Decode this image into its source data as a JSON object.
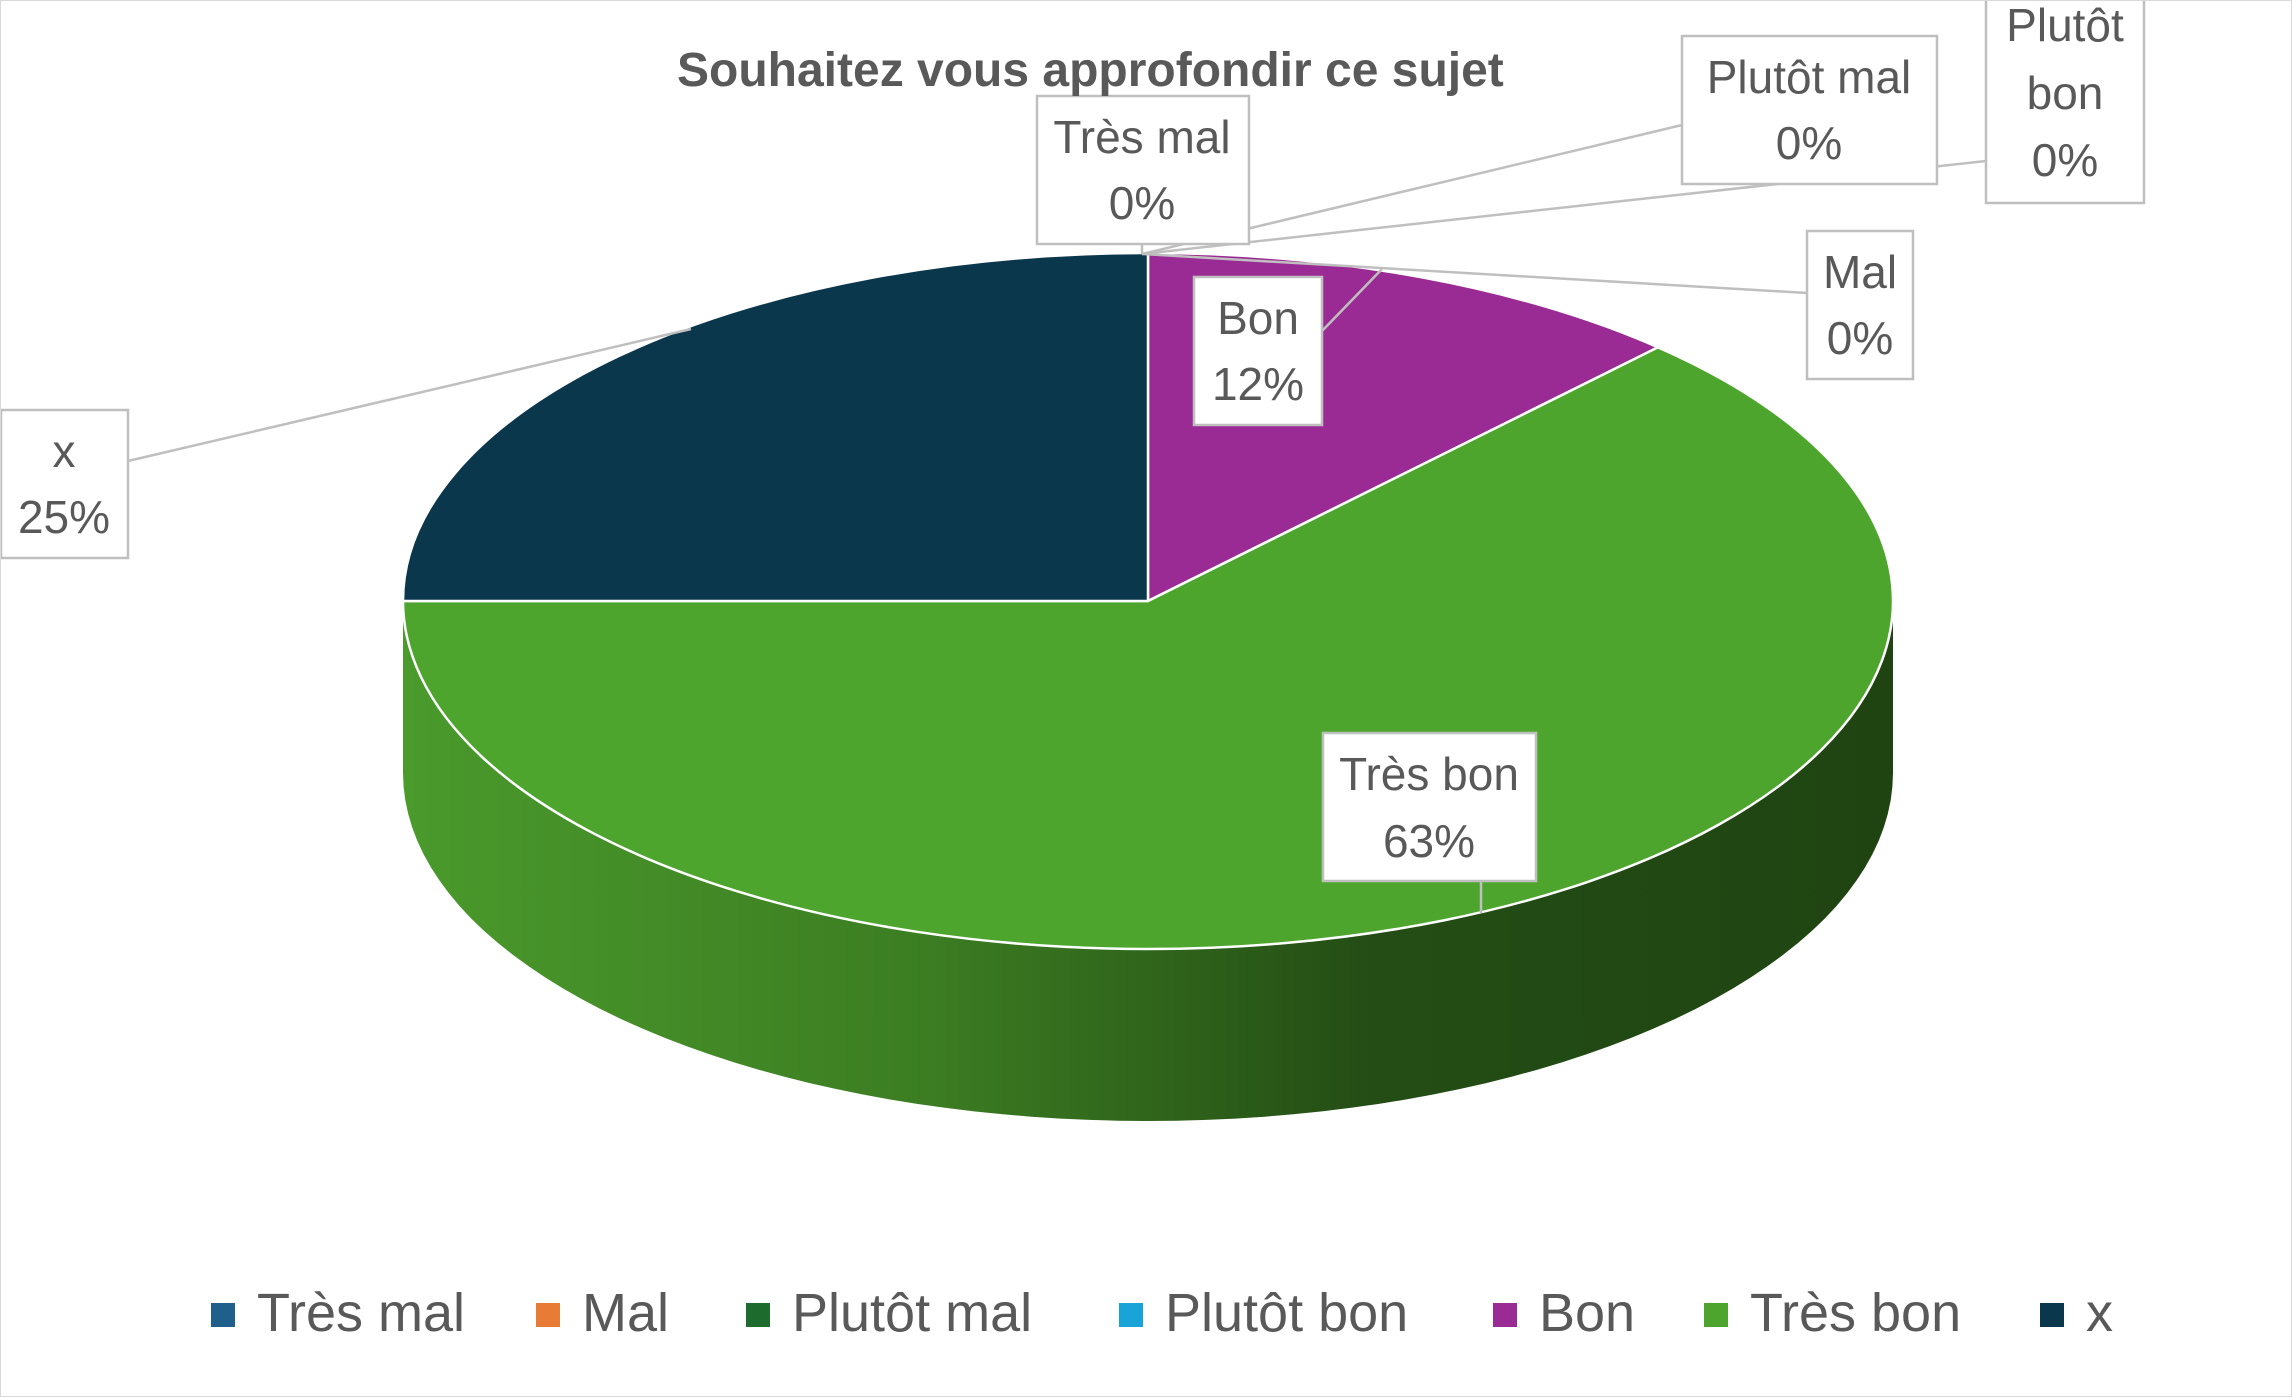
{
  "chart_data": {
    "type": "pie",
    "title": "Souhaitez vous approfondir ce sujet",
    "categories": [
      "Très mal",
      "Mal",
      "Plutôt mal",
      "Plutôt bon",
      "Bon",
      "Très bon",
      "x"
    ],
    "values": [
      0,
      0,
      0,
      0,
      12,
      63,
      25
    ],
    "value_unit": "%",
    "data_labels": [
      "0%",
      "0%",
      "0%",
      "0%",
      "12%",
      "63%",
      "25%"
    ],
    "colors": [
      "#1f5f8b",
      "#e87b35",
      "#1e6b2e",
      "#18a3d9",
      "#9b2b94",
      "#4da52e",
      "#0b374d"
    ],
    "legend_position": "bottom",
    "legend": [
      "Très mal",
      "Mal",
      "Plutôt mal",
      "Plutôt bon",
      "Bon",
      "Très bon",
      "x"
    ],
    "style": "3d-pie"
  }
}
